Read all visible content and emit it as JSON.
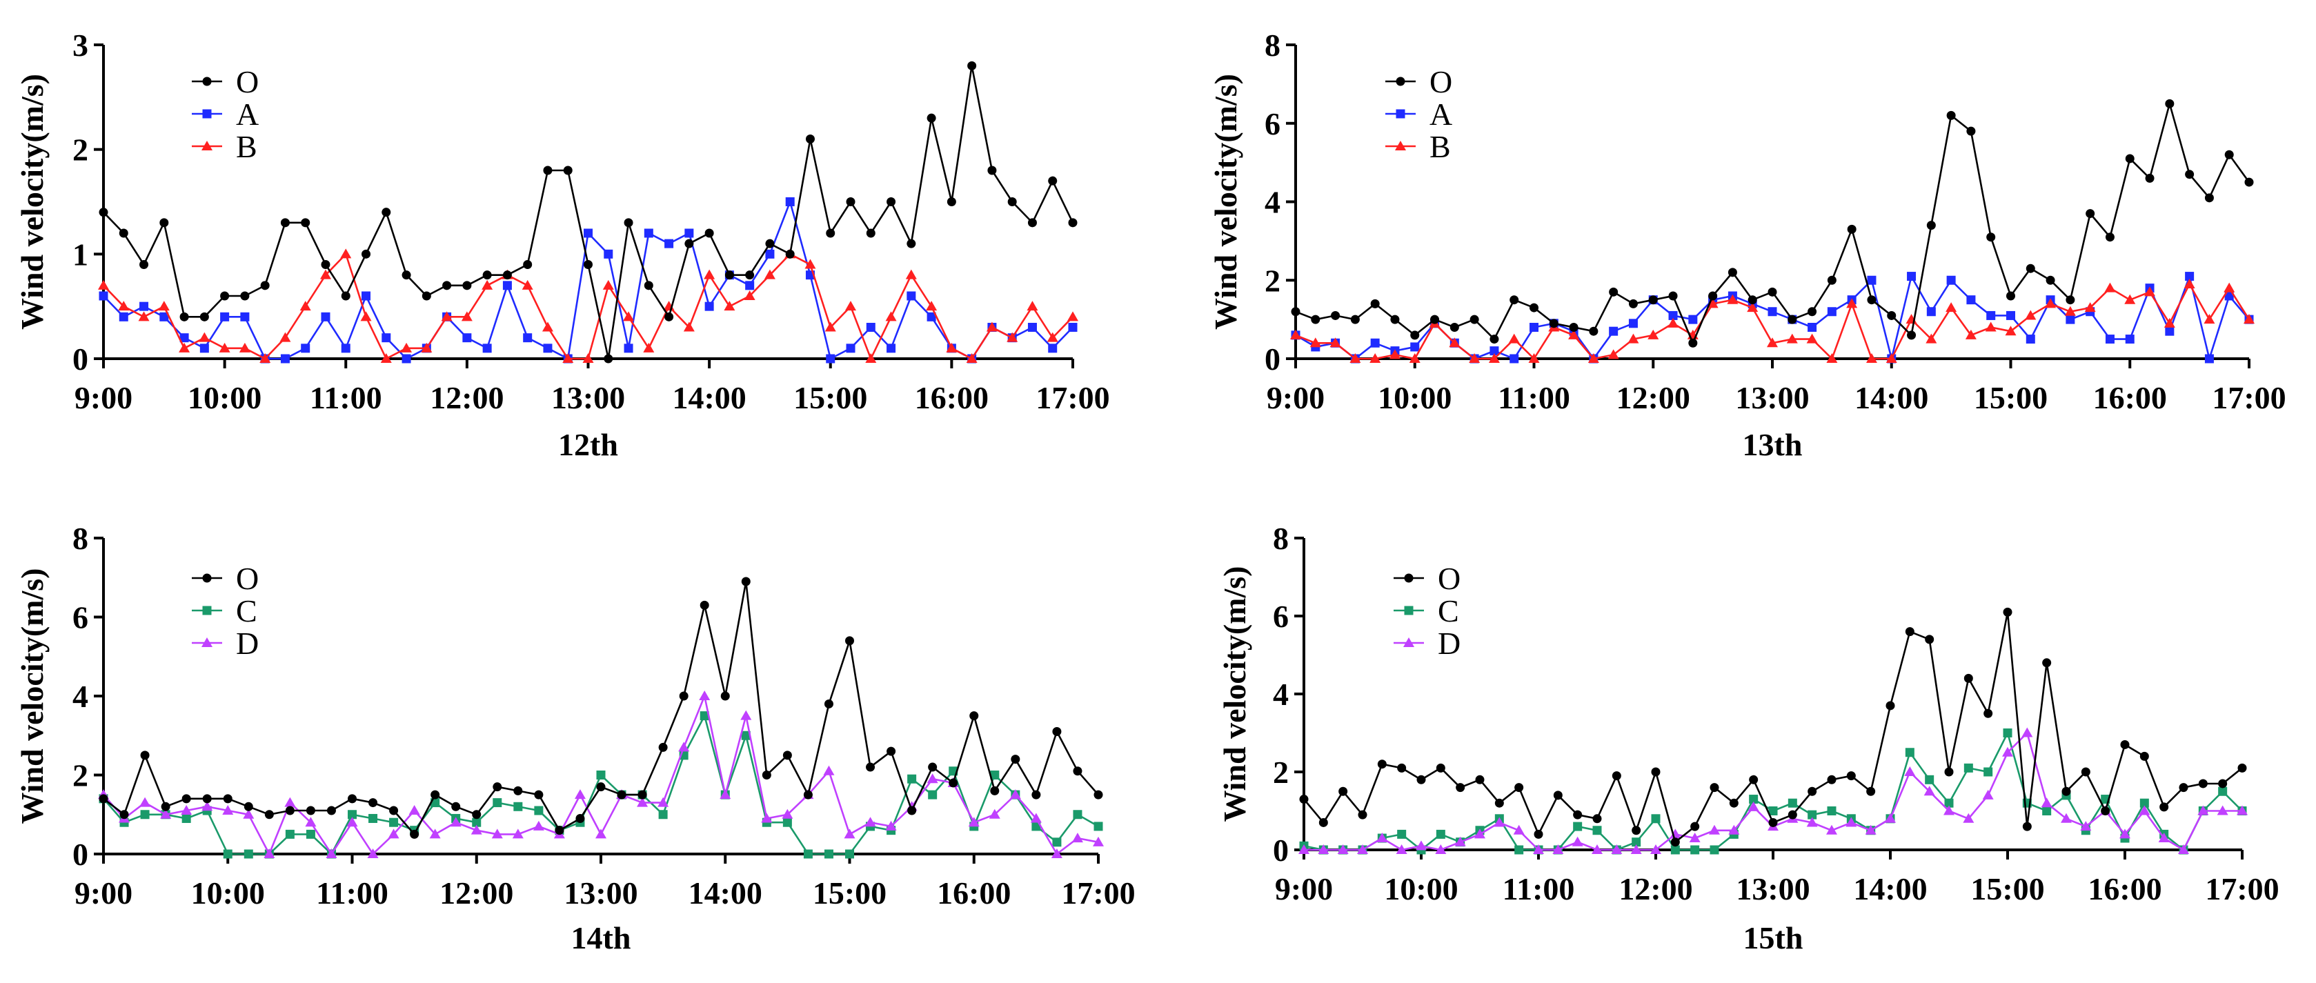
{
  "x_ticks": [
    "9:00",
    "10:00",
    "11:00",
    "12:00",
    "13:00",
    "14:00",
    "15:00",
    "16:00",
    "17:00"
  ],
  "series_colors": {
    "O": "#000000",
    "A": "#1f2bff",
    "B": "#ff2020",
    "C": "#1a9a6a",
    "D": "#c040ff"
  },
  "series_markers": {
    "O": "circle",
    "A": "square",
    "B": "triangle",
    "C": "square",
    "D": "triangle"
  },
  "chart_data": [
    {
      "type": "line",
      "title": "",
      "xlabel": "12th",
      "ylabel": "Wind velocity(m/s)",
      "ylim": [
        0,
        3
      ],
      "yticks": [
        "0",
        "1",
        "2",
        "3"
      ],
      "x_range_hours": [
        9,
        17
      ],
      "x_step_minutes": 10,
      "legend": [
        "O",
        "A",
        "B"
      ],
      "series": [
        {
          "name": "O",
          "values": [
            1.4,
            1.2,
            0.9,
            1.3,
            0.4,
            0.4,
            0.6,
            0.6,
            0.7,
            1.3,
            1.3,
            0.9,
            0.6,
            1.0,
            1.4,
            0.8,
            0.6,
            0.7,
            0.7,
            0.8,
            0.8,
            0.9,
            1.8,
            1.8,
            0.9,
            0.0,
            1.3,
            0.7,
            0.4,
            1.1,
            1.2,
            0.8,
            0.8,
            1.1,
            1.0,
            2.1,
            1.2,
            1.5,
            1.2,
            1.5,
            1.1,
            2.3,
            1.5,
            2.8,
            1.8,
            1.5,
            1.3,
            1.7,
            1.3
          ]
        },
        {
          "name": "A",
          "values": [
            0.6,
            0.4,
            0.5,
            0.4,
            0.2,
            0.1,
            0.4,
            0.4,
            0.0,
            0.0,
            0.1,
            0.4,
            0.1,
            0.6,
            0.2,
            0.0,
            0.1,
            0.4,
            0.2,
            0.1,
            0.7,
            0.2,
            0.1,
            0.0,
            1.2,
            1.0,
            0.1,
            1.2,
            1.1,
            1.2,
            0.5,
            0.8,
            0.7,
            1.0,
            1.5,
            0.8,
            0.0,
            0.1,
            0.3,
            0.1,
            0.6,
            0.4,
            0.1,
            0.0,
            0.3,
            0.2,
            0.3,
            0.1,
            0.3
          ]
        },
        {
          "name": "B",
          "values": [
            0.7,
            0.5,
            0.4,
            0.5,
            0.1,
            0.2,
            0.1,
            0.1,
            0.0,
            0.2,
            0.5,
            0.8,
            1.0,
            0.4,
            0.0,
            0.1,
            0.1,
            0.4,
            0.4,
            0.7,
            0.8,
            0.7,
            0.3,
            0.0,
            0.0,
            0.7,
            0.4,
            0.1,
            0.5,
            0.3,
            0.8,
            0.5,
            0.6,
            0.8,
            1.0,
            0.9,
            0.3,
            0.5,
            0.0,
            0.4,
            0.8,
            0.5,
            0.1,
            0.0,
            0.3,
            0.2,
            0.5,
            0.2,
            0.4
          ]
        }
      ]
    },
    {
      "type": "line",
      "title": "",
      "xlabel": "13th",
      "ylabel": "Wind velocity(m/s)",
      "ylim": [
        0,
        8
      ],
      "yticks": [
        "0",
        "2",
        "4",
        "6",
        "8"
      ],
      "x_range_hours": [
        9,
        17
      ],
      "x_step_minutes": 10,
      "legend": [
        "O",
        "A",
        "B"
      ],
      "series": [
        {
          "name": "O",
          "values": [
            1.2,
            1.0,
            1.1,
            1.0,
            1.4,
            1.0,
            0.6,
            1.0,
            0.8,
            1.0,
            0.5,
            1.5,
            1.3,
            0.9,
            0.8,
            0.7,
            1.7,
            1.4,
            1.5,
            1.6,
            0.4,
            1.6,
            2.2,
            1.5,
            1.7,
            1.0,
            1.2,
            2.0,
            3.3,
            1.5,
            1.1,
            0.6,
            3.4,
            6.2,
            5.8,
            3.1,
            1.6,
            2.3,
            2.0,
            1.5,
            3.7,
            3.1,
            5.1,
            4.6,
            6.5,
            4.7,
            4.1,
            5.2,
            4.5
          ]
        },
        {
          "name": "A",
          "values": [
            0.6,
            0.3,
            0.4,
            0.0,
            0.4,
            0.2,
            0.3,
            0.9,
            0.4,
            0.0,
            0.2,
            0.0,
            0.8,
            0.9,
            0.7,
            0.0,
            0.7,
            0.9,
            1.5,
            1.1,
            1.0,
            1.5,
            1.6,
            1.4,
            1.2,
            1.0,
            0.8,
            1.2,
            1.5,
            2.0,
            0.0,
            2.1,
            1.2,
            2.0,
            1.5,
            1.1,
            1.1,
            0.5,
            1.5,
            1.0,
            1.2,
            0.5,
            0.5,
            1.8,
            0.7,
            2.1,
            0.0,
            1.6,
            1.0
          ]
        },
        {
          "name": "B",
          "values": [
            0.6,
            0.4,
            0.4,
            0.0,
            0.0,
            0.1,
            0.0,
            0.9,
            0.4,
            0.0,
            0.0,
            0.5,
            0.0,
            0.8,
            0.6,
            0.0,
            0.1,
            0.5,
            0.6,
            0.9,
            0.6,
            1.4,
            1.5,
            1.3,
            0.4,
            0.5,
            0.5,
            0.0,
            1.4,
            0.0,
            0.0,
            1.0,
            0.5,
            1.3,
            0.6,
            0.8,
            0.7,
            1.1,
            1.4,
            1.2,
            1.3,
            1.8,
            1.5,
            1.7,
            0.9,
            1.9,
            1.0,
            1.8,
            1.0
          ]
        }
      ]
    },
    {
      "type": "line",
      "title": "",
      "xlabel": "14th",
      "ylabel": "Wind velocity(m/s)",
      "ylim": [
        0,
        8
      ],
      "yticks": [
        "0",
        "2",
        "4",
        "6",
        "8"
      ],
      "x_range_hours": [
        9,
        17
      ],
      "x_step_minutes": 10,
      "legend": [
        "O",
        "C",
        "D"
      ],
      "series": [
        {
          "name": "O",
          "values": [
            1.4,
            1.0,
            2.5,
            1.2,
            1.4,
            1.4,
            1.4,
            1.2,
            1.0,
            1.1,
            1.1,
            1.1,
            1.4,
            1.3,
            1.1,
            0.5,
            1.5,
            1.2,
            1.0,
            1.7,
            1.6,
            1.5,
            0.6,
            0.9,
            1.7,
            1.5,
            1.5,
            2.7,
            4.0,
            6.3,
            4.0,
            6.9,
            2.0,
            2.5,
            1.5,
            3.8,
            5.4,
            2.2,
            2.6,
            1.1,
            2.2,
            1.8,
            3.5,
            1.6,
            2.4,
            1.5,
            3.1,
            2.1,
            1.5
          ]
        },
        {
          "name": "C",
          "values": [
            1.4,
            0.8,
            1.0,
            1.0,
            0.9,
            1.1,
            0.0,
            0.0,
            0.0,
            0.5,
            0.5,
            0.0,
            1.0,
            0.9,
            0.8,
            0.6,
            1.3,
            0.9,
            0.8,
            1.3,
            1.2,
            1.1,
            0.6,
            0.8,
            2.0,
            1.5,
            1.5,
            1.0,
            2.5,
            3.5,
            1.5,
            3.0,
            0.8,
            0.8,
            0.0,
            0.0,
            0.0,
            0.7,
            0.6,
            1.9,
            1.5,
            2.1,
            0.7,
            2.0,
            1.5,
            0.7,
            0.3,
            1.0,
            0.7
          ]
        },
        {
          "name": "D",
          "values": [
            1.5,
            0.9,
            1.3,
            1.0,
            1.1,
            1.2,
            1.1,
            1.0,
            0.0,
            1.3,
            0.8,
            0.0,
            0.8,
            0.0,
            0.5,
            1.1,
            0.5,
            0.8,
            0.6,
            0.5,
            0.5,
            0.7,
            0.5,
            1.5,
            0.5,
            1.5,
            1.3,
            1.3,
            2.7,
            4.0,
            1.5,
            3.5,
            0.9,
            1.0,
            1.5,
            2.1,
            0.5,
            0.8,
            0.7,
            1.2,
            1.9,
            1.8,
            0.8,
            1.0,
            1.5,
            0.9,
            0.0,
            0.4,
            0.3
          ]
        }
      ]
    },
    {
      "type": "line",
      "title": "",
      "xlabel": "15th",
      "ylabel": "Wind velocity(m/s)",
      "ylim": [
        0,
        8
      ],
      "yticks": [
        "0",
        "2",
        "4",
        "6",
        "8"
      ],
      "x_range_hours": [
        9,
        17
      ],
      "x_step_minutes": 10,
      "legend": [
        "O",
        "C",
        "D"
      ],
      "series": [
        {
          "name": "O",
          "values": [
            1.3,
            0.7,
            1.5,
            0.9,
            2.2,
            2.1,
            1.8,
            2.1,
            1.6,
            1.8,
            1.2,
            1.6,
            0.4,
            1.4,
            0.9,
            0.8,
            1.9,
            0.5,
            2.0,
            0.2,
            0.6,
            1.6,
            1.2,
            1.8,
            0.7,
            0.9,
            1.5,
            1.8,
            1.9,
            1.5,
            3.7,
            5.6,
            5.4,
            2.0,
            4.4,
            3.5,
            6.1,
            0.6,
            4.8,
            1.5,
            2.0,
            1.0,
            2.7,
            2.4,
            1.1,
            1.6,
            1.7,
            1.7,
            2.1
          ]
        },
        {
          "name": "C",
          "values": [
            0.1,
            0.0,
            0.0,
            0.0,
            0.3,
            0.4,
            0.0,
            0.4,
            0.2,
            0.5,
            0.8,
            0.0,
            0.0,
            0.0,
            0.6,
            0.5,
            0.0,
            0.2,
            0.8,
            0.0,
            0.0,
            0.0,
            0.4,
            1.3,
            1.0,
            1.2,
            0.9,
            1.0,
            0.8,
            0.5,
            0.8,
            2.5,
            1.8,
            1.2,
            2.1,
            2.0,
            3.0,
            1.2,
            1.0,
            1.4,
            0.5,
            1.3,
            0.3,
            1.2,
            0.4,
            0.0,
            1.0,
            1.5,
            1.0
          ]
        },
        {
          "name": "D",
          "values": [
            0.0,
            0.0,
            0.0,
            0.0,
            0.3,
            0.0,
            0.1,
            0.0,
            0.2,
            0.4,
            0.7,
            0.5,
            0.0,
            0.0,
            0.2,
            0.0,
            0.0,
            0.0,
            0.0,
            0.4,
            0.3,
            0.5,
            0.5,
            1.1,
            0.6,
            0.8,
            0.7,
            0.5,
            0.7,
            0.5,
            0.8,
            2.0,
            1.5,
            1.0,
            0.8,
            1.4,
            2.5,
            3.0,
            1.2,
            0.8,
            0.6,
            1.0,
            0.4,
            1.0,
            0.3,
            0.0,
            1.0,
            1.0,
            1.0
          ]
        }
      ]
    }
  ]
}
